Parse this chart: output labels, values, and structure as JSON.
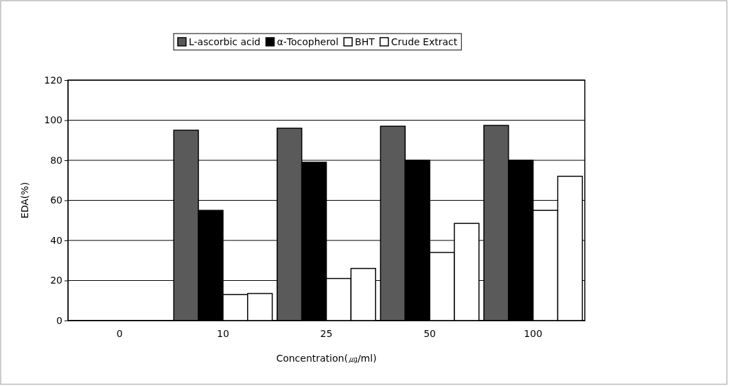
{
  "chart_data": {
    "type": "bar",
    "xlabel": "Concentration(㎍/ml)",
    "ylabel": "EDA(%)",
    "categories": [
      "0",
      "10",
      "25",
      "50",
      "100"
    ],
    "series": [
      {
        "name": "L-ascorbic acid",
        "color": "#5a5a5a",
        "values": [
          0,
          95,
          96,
          97,
          97.4
        ]
      },
      {
        "name": "α-Tocopherol",
        "color": "#000000",
        "values": [
          0,
          55,
          79,
          80,
          80
        ]
      },
      {
        "name": "BHT",
        "color": "#ffffff",
        "values": [
          0,
          13,
          21,
          34,
          55
        ]
      },
      {
        "name": "Crude Extract",
        "color": "#ffffff",
        "values": [
          0,
          13.5,
          26,
          48.5,
          72
        ]
      }
    ],
    "ylim": [
      0,
      120
    ],
    "yticks": [
      0,
      20,
      40,
      60,
      80,
      100,
      120
    ],
    "grid": "y",
    "legend": "top"
  }
}
